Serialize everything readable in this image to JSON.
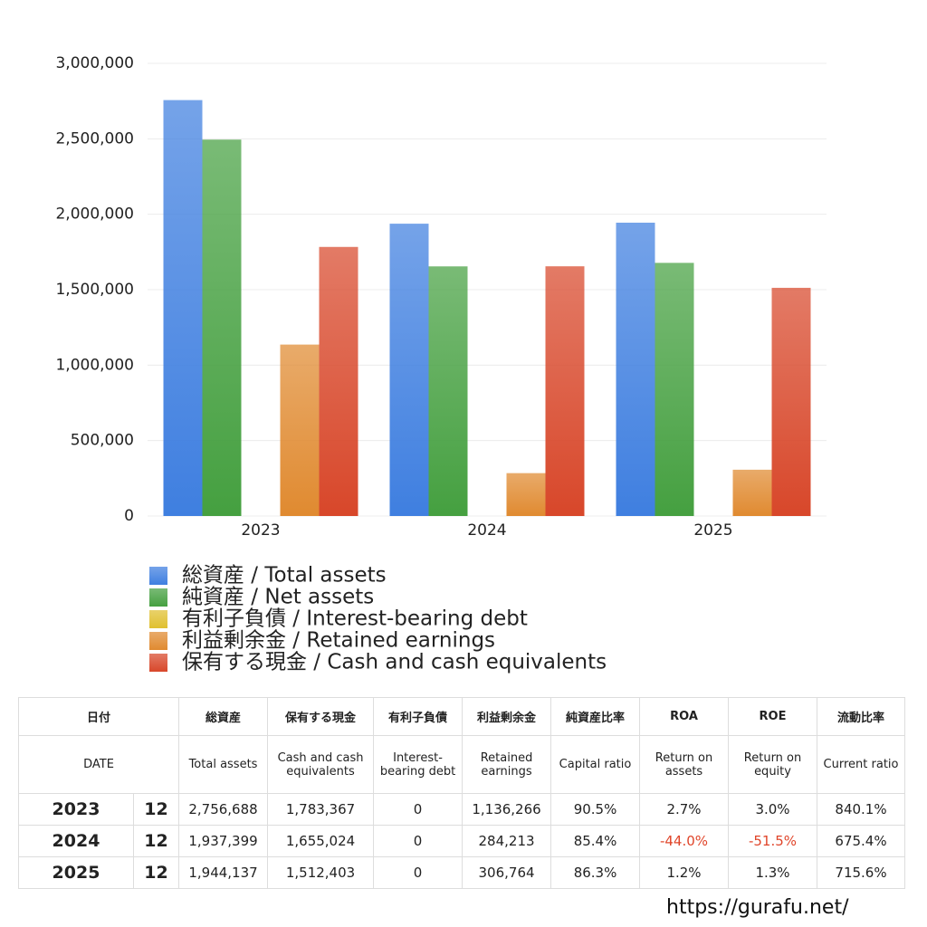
{
  "chart_data": {
    "type": "bar",
    "categories": [
      "2023",
      "2024",
      "2025"
    ],
    "series": [
      {
        "name": "総資産 / Total assets",
        "color": "#3f7fe0",
        "values": [
          2756688,
          1937399,
          1944137
        ]
      },
      {
        "name": "純資産 / Net assets",
        "color": "#45a040",
        "values": [
          2494800,
          1654500,
          1677800
        ]
      },
      {
        "name": "有利子負債 / Interest-bearing debt",
        "color": "#e0c030",
        "values": [
          0,
          0,
          0
        ]
      },
      {
        "name": "利益剰余金 / Retained earnings",
        "color": "#e08a30",
        "values": [
          1136266,
          284213,
          306764
        ]
      },
      {
        "name": "保有する現金 / Cash and cash equivalents",
        "color": "#d8472a",
        "values": [
          1783367,
          1655024,
          1512403
        ]
      }
    ],
    "ylim": [
      0,
      3000000
    ],
    "yticks": [
      0,
      {
        "value": 500000,
        "label": "500,000"
      },
      {
        "value": 1000000,
        "label": "1,000,000"
      },
      {
        "value": 1500000,
        "label": "1,500,000"
      },
      {
        "value": 2000000,
        "label": "2,000,000"
      },
      {
        "value": 2500000,
        "label": "2,500,000"
      },
      {
        "value": 3000000,
        "label": "3,000,000"
      }
    ],
    "grid": true
  },
  "table": {
    "header": [
      [
        "日付",
        "総資産",
        "保有する現金",
        "有利子負債",
        "利益剰余金",
        "純資産比率",
        "ROA",
        "ROE",
        "流動比率"
      ],
      [
        "DATE",
        "Total assets",
        "Cash and cash equivalents",
        "Interest-bearing debt",
        "Retained earnings",
        "Capital ratio",
        "Return on assets",
        "Return on equity",
        "Current ratio"
      ]
    ],
    "rows": [
      [
        "2023",
        "12",
        "2,756,688",
        "1,783,367",
        "0",
        "1,136,266",
        "90.5%",
        "2.7%",
        "3.0%",
        "840.1%"
      ],
      [
        "2024",
        "12",
        "1,937,399",
        "1,655,024",
        "0",
        "284,213",
        "85.4%",
        "-44.0%",
        "-51.5%",
        "675.4%"
      ],
      [
        "2025",
        "12",
        "1,944,137",
        "1,512,403",
        "0",
        "306,764",
        "86.3%",
        "1.2%",
        "1.3%",
        "715.6%"
      ]
    ]
  },
  "footer": "https://gurafu.net/"
}
